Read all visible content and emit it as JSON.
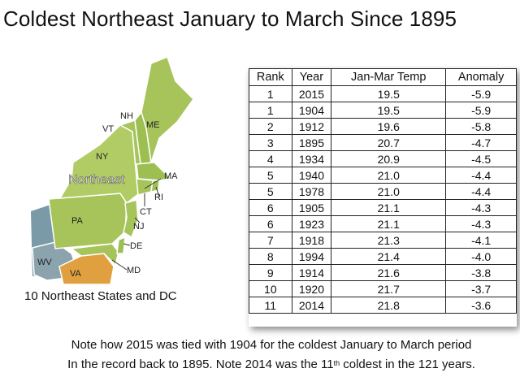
{
  "title": "Coldest Northeast January to March Since 1895",
  "map": {
    "region_label": "Northeast",
    "states": [
      "NH",
      "ME",
      "VT",
      "NY",
      "MA",
      "RI",
      "CT",
      "PA",
      "NJ",
      "DE",
      "WV",
      "VA",
      "MD"
    ],
    "caption": "10 Northeast States and DC",
    "colors": {
      "northeast_fill": "#a6c45a",
      "neighbor_fill": "#7a9aa8",
      "va_fill": "#e0a040",
      "border": "#ffffff"
    }
  },
  "table": {
    "headers": [
      "Rank",
      "Year",
      "Jan-Mar Temp",
      "Anomaly"
    ],
    "rows": [
      [
        "1",
        "2015",
        "19.5",
        "-5.9"
      ],
      [
        "1",
        "1904",
        "19.5",
        "-5.9"
      ],
      [
        "2",
        "1912",
        "19.6",
        "-5.8"
      ],
      [
        "3",
        "1895",
        "20.7",
        "-4.7"
      ],
      [
        "4",
        "1934",
        "20.9",
        "-4.5"
      ],
      [
        "5",
        "1940",
        "21.0",
        "-4.4"
      ],
      [
        "5",
        "1978",
        "21.0",
        "-4.4"
      ],
      [
        "6",
        "1905",
        "21.1",
        "-4.3"
      ],
      [
        "6",
        "1923",
        "21.1",
        "-4.3"
      ],
      [
        "7",
        "1918",
        "21.3",
        "-4.1"
      ],
      [
        "8",
        "1994",
        "21.4",
        "-4.0"
      ],
      [
        "9",
        "1914",
        "21.6",
        "-3.8"
      ],
      [
        "10",
        "1920",
        "21.7",
        "-3.7"
      ],
      [
        "11",
        "2014",
        "21.8",
        "-3.6"
      ]
    ]
  },
  "notes": {
    "line1": "Note how 2015 was tied with 1904 for the coldest January to March period",
    "line2_pre": "In the record back to 1895. Note 2014 was the 11",
    "line2_sup": "th",
    "line2_post": " coldest in the 121 years."
  }
}
